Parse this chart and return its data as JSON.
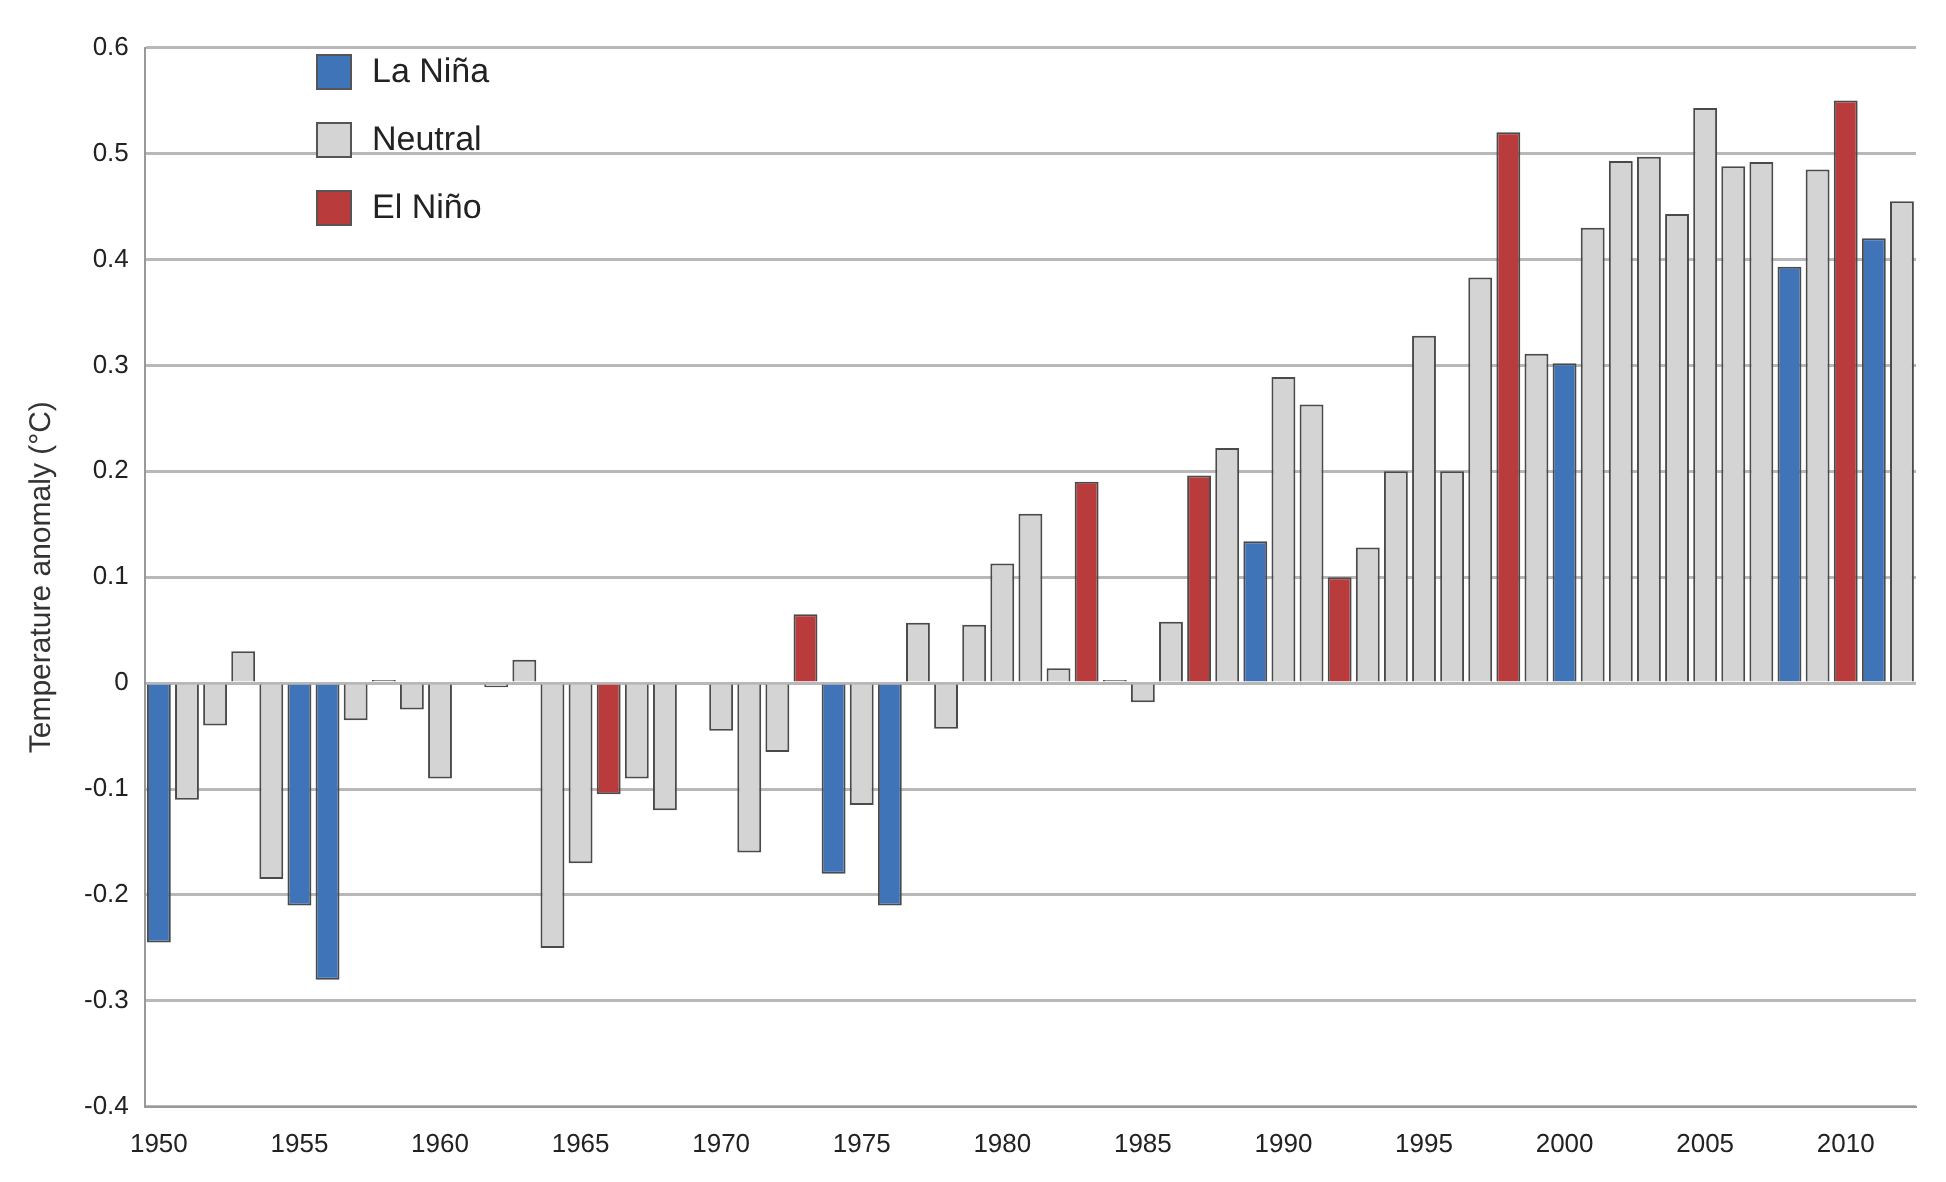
{
  "chart_data": {
    "type": "bar",
    "ylabel": "Temperature anomaly (°C)",
    "categories": [
      "1950",
      null,
      null,
      null,
      null,
      "1955",
      null,
      null,
      null,
      null,
      "1960",
      null,
      null,
      null,
      null,
      "1965",
      null,
      null,
      null,
      null,
      "1970",
      null,
      null,
      null,
      null,
      "1975",
      null,
      null,
      null,
      null,
      "1980",
      null,
      null,
      null,
      null,
      "1985",
      null,
      null,
      null,
      null,
      "1990",
      null,
      null,
      null,
      null,
      "1995",
      null,
      null,
      null,
      null,
      "2000",
      null,
      null,
      null,
      null,
      "2005",
      null,
      null,
      null,
      null,
      "2010",
      null,
      null
    ],
    "series": [
      {
        "name": "La Niña",
        "color": "#3f74b8",
        "values": [
          -0.245,
          null,
          null,
          null,
          null,
          -0.21,
          -0.28,
          null,
          null,
          null,
          null,
          null,
          null,
          null,
          null,
          null,
          null,
          null,
          null,
          null,
          null,
          null,
          null,
          null,
          -0.18,
          null,
          -0.21,
          null,
          null,
          null,
          null,
          null,
          null,
          null,
          null,
          null,
          null,
          null,
          null,
          0.134,
          null,
          null,
          null,
          null,
          null,
          null,
          null,
          null,
          null,
          null,
          0.302,
          null,
          null,
          null,
          null,
          null,
          null,
          null,
          0.393,
          null,
          null,
          0.42,
          null
        ]
      },
      {
        "name": "Neutral",
        "color": "#d4d4d4",
        "values": [
          null,
          -0.11,
          -0.04,
          0.03,
          -0.185,
          null,
          null,
          -0.035,
          0.003,
          -0.025,
          -0.09,
          null,
          -0.004,
          0.022,
          -0.25,
          -0.17,
          null,
          -0.09,
          -0.12,
          null,
          -0.045,
          -0.16,
          -0.065,
          null,
          null,
          -0.115,
          null,
          0.057,
          -0.043,
          0.055,
          0.113,
          0.16,
          0.014,
          null,
          0.003,
          -0.018,
          0.058,
          null,
          0.222,
          null,
          0.289,
          0.263,
          null,
          0.128,
          0.2,
          0.328,
          0.2,
          0.383,
          null,
          0.311,
          null,
          0.43,
          0.493,
          0.497,
          0.443,
          0.543,
          0.488,
          0.492,
          null,
          0.485,
          null,
          null,
          0.455
        ]
      },
      {
        "name": "El Niño",
        "color": "#b93b3b",
        "values": [
          null,
          null,
          null,
          null,
          null,
          null,
          null,
          null,
          null,
          null,
          null,
          null,
          null,
          null,
          null,
          null,
          -0.105,
          null,
          null,
          null,
          null,
          null,
          null,
          0.065,
          null,
          null,
          null,
          null,
          null,
          null,
          null,
          null,
          null,
          0.19,
          null,
          null,
          null,
          0.196,
          null,
          null,
          null,
          null,
          0.1,
          null,
          null,
          null,
          null,
          null,
          0.52,
          null,
          null,
          null,
          null,
          null,
          null,
          null,
          null,
          null,
          null,
          null,
          0.55,
          null,
          null
        ]
      }
    ],
    "ylim": [
      -0.4,
      0.6
    ],
    "yticks": [
      -0.4,
      -0.3,
      -0.2,
      -0.1,
      0,
      0.1,
      0.2,
      0.3,
      0.4,
      0.5,
      0.6
    ],
    "grid": "y",
    "legend": "top left"
  }
}
